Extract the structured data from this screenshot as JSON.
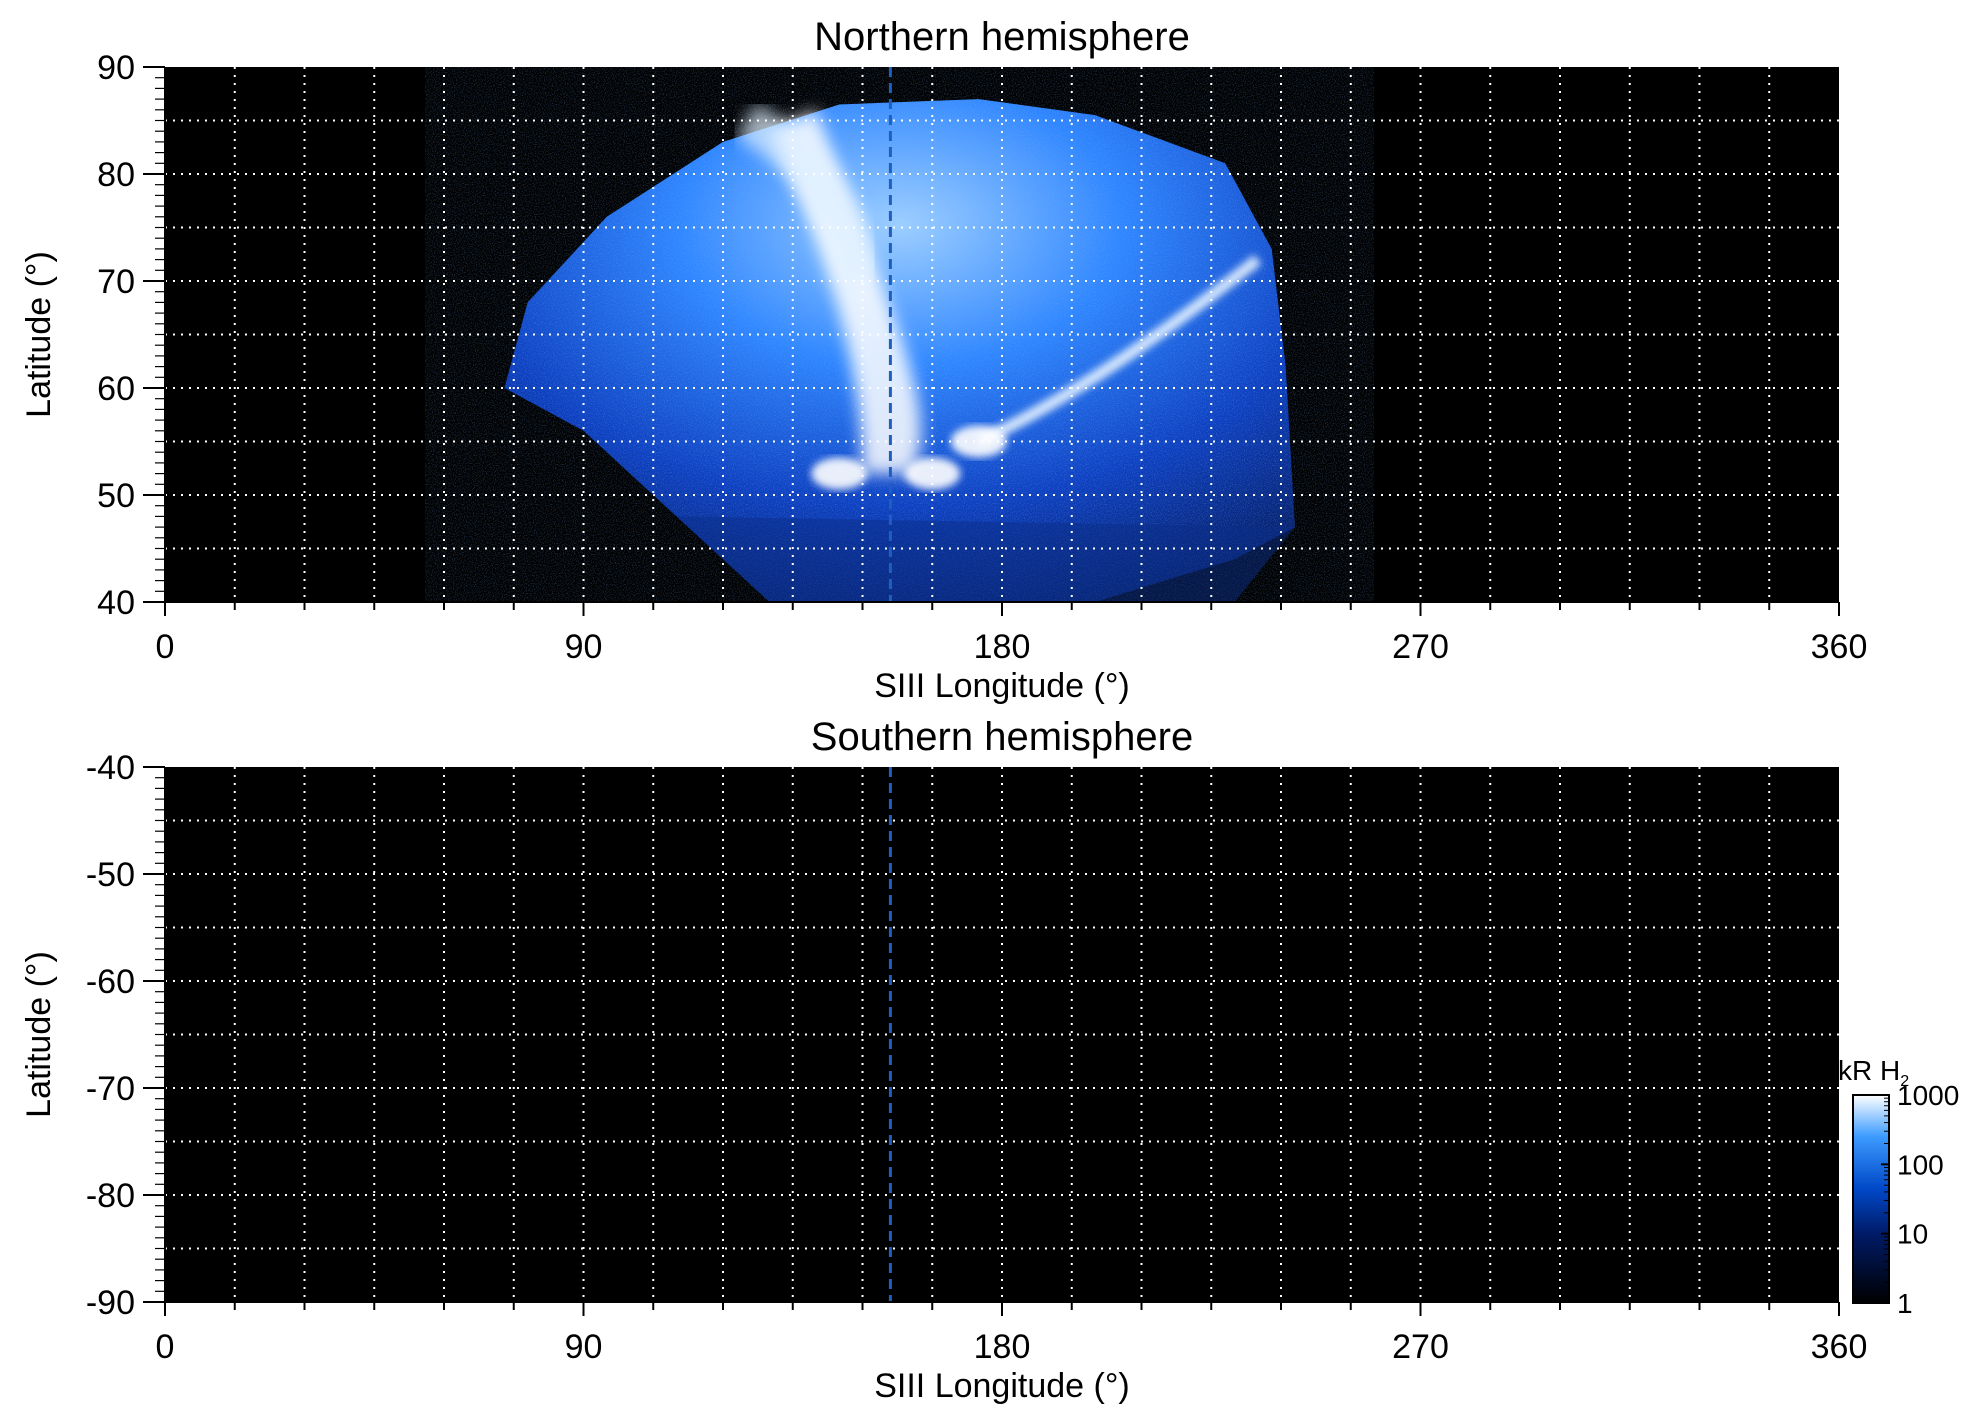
{
  "chart_data": [
    {
      "type": "heatmap",
      "title": "Northern hemisphere",
      "xlabel": "SIII Longitude (°)",
      "ylabel": "Latitude (°)",
      "xlim": [
        0,
        360
      ],
      "ylim": [
        40,
        90
      ],
      "x_ticks": [
        "0",
        "90",
        "180",
        "270",
        "360"
      ],
      "y_ticks": [
        "40",
        "50",
        "60",
        "70",
        "80",
        "90"
      ],
      "grid": true,
      "reference_line": {
        "x": 156,
        "style": "dashed",
        "color": "#1f5fbf"
      },
      "emission_region": {
        "lon_range": [
          73,
          242
        ],
        "lat_range": [
          40,
          87
        ],
        "features": [
          {
            "name": "bright polar arc",
            "lon_range": [
              140,
              175
            ],
            "lat_range": [
              52,
              86
            ]
          },
          {
            "name": "main oval dusk arc",
            "lon_range": [
              175,
              235
            ],
            "lat_range": [
              55,
              72
            ]
          },
          {
            "name": "bright spots",
            "lon": [
              145,
              165,
              175
            ],
            "lat": [
              52,
              52,
              55
            ]
          }
        ]
      }
    },
    {
      "type": "heatmap",
      "title": "Southern hemisphere",
      "xlabel": "SIII Longitude (°)",
      "ylabel": "Latitude (°)",
      "xlim": [
        0,
        360
      ],
      "ylim": [
        -90,
        -40
      ],
      "x_ticks": [
        "0",
        "90",
        "180",
        "270",
        "360"
      ],
      "y_ticks": [
        "-40",
        "-50",
        "-60",
        "-70",
        "-80",
        "-90"
      ],
      "grid": true,
      "reference_line": {
        "x": 156,
        "style": "dashed",
        "color": "#1f5fbf"
      },
      "emission_region": null
    }
  ],
  "colorbar": {
    "label": "kR H",
    "label_subscript": "2",
    "scale": "log",
    "range": [
      1,
      1000
    ],
    "ticks": [
      "1",
      "10",
      "100",
      "1000"
    ],
    "colors": [
      "#000000",
      "#001a66",
      "#0048c8",
      "#3c9bff",
      "#ffffff"
    ]
  }
}
